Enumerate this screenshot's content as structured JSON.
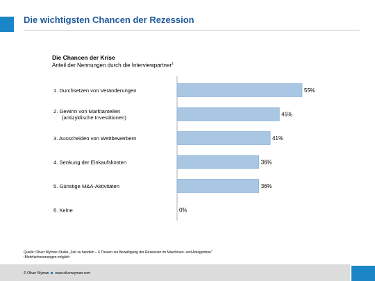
{
  "slide": {
    "title": "Die wichtigsten Chancen der Rezession",
    "accent_color": "#1a86c8",
    "title_color": "#1f5a9b"
  },
  "chart_header": {
    "title": "Die Chancen der Krise",
    "subtitle": "Anteil der Nennungen durch die Interviewpartner",
    "subtitle_footnote_mark": "1"
  },
  "chart_data": {
    "type": "bar",
    "orientation": "horizontal",
    "categories": [
      [
        "1. Durchsetzen von Veränderungen"
      ],
      [
        "2. Gewinn von Marktanteilen",
        "(antizyklische Investitionen)"
      ],
      [
        "3. Ausscheiden von Wettbewerbern"
      ],
      [
        "4. Senkung der Einkaufskosten"
      ],
      [
        "5. Günstige M&A-Aktivitäten"
      ],
      [
        "6. Keine"
      ]
    ],
    "values": [
      55,
      45,
      41,
      36,
      36,
      0
    ],
    "value_labels": [
      "55%",
      "45%",
      "41%",
      "36%",
      "36%",
      "0%"
    ],
    "unit": "%",
    "xlim": [
      0,
      55
    ],
    "bar_color": "#a9c7e3",
    "bar_stroke": "#7ea9d1",
    "grid": false
  },
  "source": {
    "line1": "Quelle: Oliver Wyman-Studie „Zeit zu handeln – 6 Thesen zur Bewältigung der Rezession im Maschinen- und Anlagenbau\"",
    "line2": "¹Mehrfachnennungen möglich"
  },
  "footer": {
    "copyright": "© Oliver Wyman",
    "website": "www.oliverwyman.com"
  }
}
